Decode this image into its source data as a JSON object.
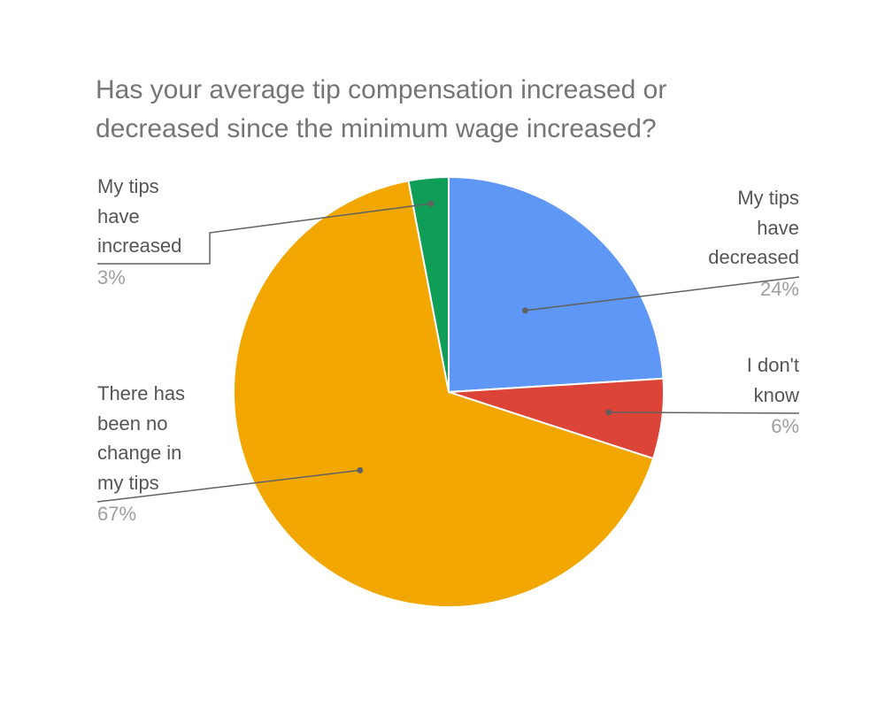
{
  "title_lines": [
    "Has your average tip compensation increased or",
    "decreased since the minimum wage increased?"
  ],
  "chart_data": {
    "type": "pie",
    "title": "Has your average tip compensation increased or decreased since the minimum wage increased?",
    "start_angle_deg": 0,
    "direction": "clockwise",
    "slices": [
      {
        "label": "My tips have decreased",
        "label_lines": [
          "My tips",
          "have",
          "decreased"
        ],
        "value": 24,
        "pct_label": "24%",
        "color": "#5e97f6"
      },
      {
        "label": "I don't know",
        "label_lines": [
          "I don't",
          "know"
        ],
        "value": 6,
        "pct_label": "6%",
        "color": "#db4437"
      },
      {
        "label": "There has been no change in my tips",
        "label_lines": [
          "There has",
          "been no",
          "change in",
          "my tips"
        ],
        "value": 67,
        "pct_label": "67%",
        "color": "#f2a600"
      },
      {
        "label": "My tips have increased",
        "label_lines": [
          "My tips",
          "have",
          "increased"
        ],
        "value": 3,
        "pct_label": "3%",
        "color": "#0f9d58"
      }
    ],
    "legend": "labels with leader lines"
  }
}
